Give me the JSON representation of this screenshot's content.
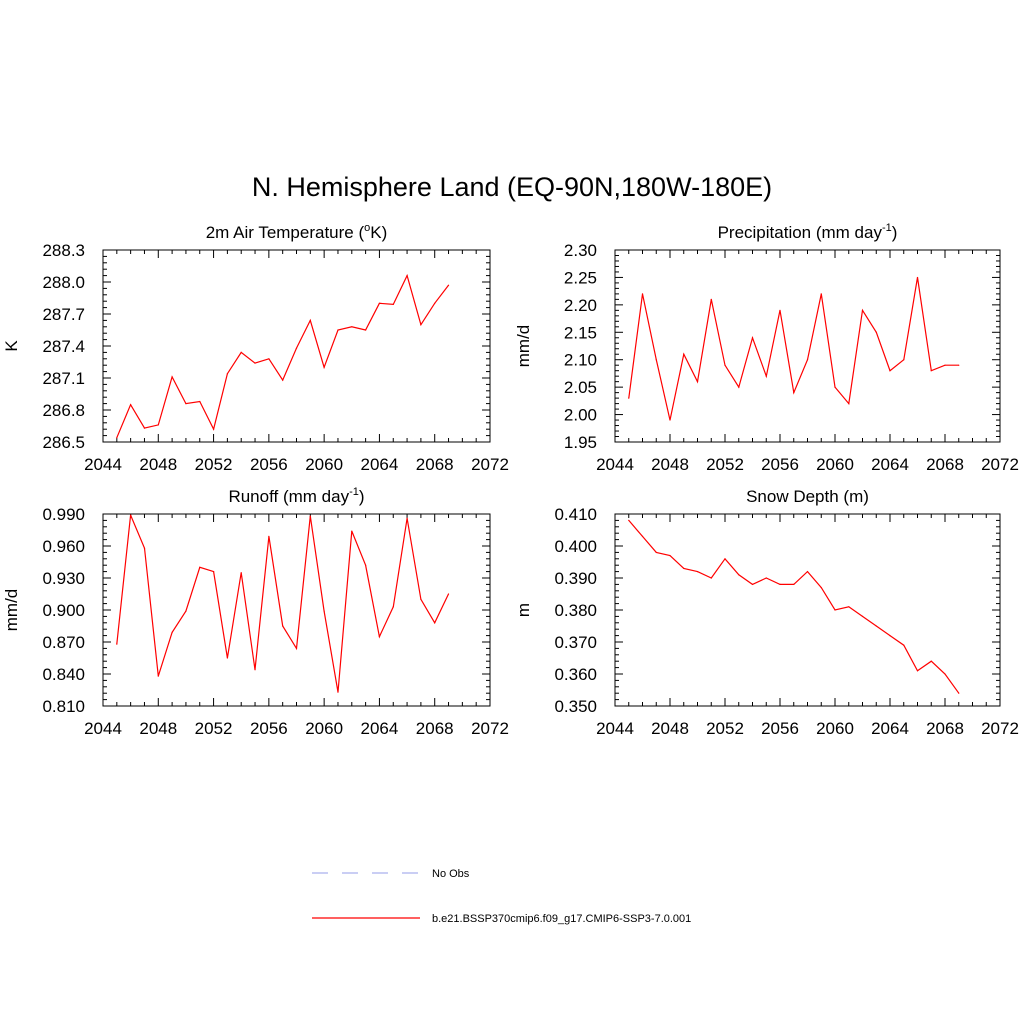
{
  "figure": {
    "title": "N. Hemisphere Land (EQ-90N,180W-180E)"
  },
  "legend": {
    "items": [
      {
        "label": "No Obs",
        "color": "#aab0ee",
        "dashed": true
      },
      {
        "label": "b.e21.BSSP370cmip6.f09_g17.CMIP6-SSP3-7.0.001",
        "color": "#ff0000",
        "dashed": false
      }
    ]
  },
  "chart_data": [
    {
      "type": "line",
      "title": "2m Air Temperature (",
      "title_sup": "o",
      "title_after": "K)",
      "ylabel": "K",
      "xlim": [
        2044,
        2072
      ],
      "ylim": [
        286.5,
        288.3
      ],
      "xticks": [
        "2044",
        "2048",
        "2052",
        "2056",
        "2060",
        "2064",
        "2068",
        "2072"
      ],
      "yticks": [
        "286.5",
        "286.8",
        "287.1",
        "287.4",
        "287.7",
        "288.0",
        "288.3"
      ],
      "color": "#ff0000",
      "x": [
        2045,
        2046,
        2047,
        2048,
        2049,
        2050,
        2051,
        2052,
        2053,
        2054,
        2055,
        2056,
        2057,
        2058,
        2059,
        2060,
        2061,
        2062,
        2063,
        2064,
        2065,
        2066,
        2067,
        2068,
        2069
      ],
      "y": [
        286.54,
        286.85,
        286.63,
        286.66,
        287.11,
        286.86,
        286.88,
        286.62,
        287.14,
        287.34,
        287.24,
        287.28,
        287.08,
        287.38,
        287.64,
        287.2,
        287.55,
        287.58,
        287.55,
        287.8,
        287.79,
        288.06,
        287.6,
        287.8,
        287.97
      ]
    },
    {
      "type": "line",
      "title": "Precipitation (mm day",
      "title_sup": "-1",
      "title_after": ")",
      "ylabel": "mm/d",
      "xlim": [
        2044,
        2072
      ],
      "ylim": [
        1.95,
        2.3
      ],
      "xticks": [
        "2044",
        "2048",
        "2052",
        "2056",
        "2060",
        "2064",
        "2068",
        "2072"
      ],
      "yticks": [
        "1.95",
        "2.00",
        "2.05",
        "2.10",
        "2.15",
        "2.20",
        "2.25",
        "2.30"
      ],
      "color": "#ff0000",
      "x": [
        2045,
        2046,
        2047,
        2048,
        2049,
        2050,
        2051,
        2052,
        2053,
        2054,
        2055,
        2056,
        2057,
        2058,
        2059,
        2060,
        2061,
        2062,
        2063,
        2064,
        2065,
        2066,
        2067,
        2068,
        2069
      ],
      "y": [
        2.03,
        2.22,
        2.1,
        1.99,
        2.11,
        2.06,
        2.21,
        2.09,
        2.05,
        2.14,
        2.07,
        2.19,
        2.04,
        2.1,
        2.22,
        2.05,
        2.02,
        2.19,
        2.15,
        2.08,
        2.1,
        2.25,
        2.08,
        2.09,
        2.09
      ]
    },
    {
      "type": "line",
      "title": "Runoff (mm day",
      "title_sup": "-1",
      "title_after": ")",
      "ylabel": "mm/d",
      "xlim": [
        2044,
        2072
      ],
      "ylim": [
        0.81,
        0.99
      ],
      "xticks": [
        "2044",
        "2048",
        "2052",
        "2056",
        "2060",
        "2064",
        "2068",
        "2072"
      ],
      "yticks": [
        "0.810",
        "0.840",
        "0.870",
        "0.900",
        "0.930",
        "0.960",
        "0.990"
      ],
      "color": "#ff0000",
      "x": [
        2045,
        2046,
        2047,
        2048,
        2049,
        2050,
        2051,
        2052,
        2053,
        2054,
        2055,
        2056,
        2057,
        2058,
        2059,
        2060,
        2061,
        2062,
        2063,
        2064,
        2065,
        2066,
        2067,
        2068,
        2069
      ],
      "y": [
        0.868,
        0.989,
        0.958,
        0.838,
        0.879,
        0.899,
        0.94,
        0.936,
        0.855,
        0.935,
        0.844,
        0.969,
        0.885,
        0.864,
        0.988,
        0.899,
        0.823,
        0.974,
        0.942,
        0.875,
        0.903,
        0.986,
        0.91,
        0.888,
        0.915
      ]
    },
    {
      "type": "line",
      "title": "Snow Depth (m)",
      "title_sup": "",
      "title_after": "",
      "ylabel": "m",
      "xlim": [
        2044,
        2072
      ],
      "ylim": [
        0.35,
        0.41
      ],
      "xticks": [
        "2044",
        "2048",
        "2052",
        "2056",
        "2060",
        "2064",
        "2068",
        "2072"
      ],
      "yticks": [
        "0.350",
        "0.360",
        "0.370",
        "0.380",
        "0.390",
        "0.400",
        "0.410"
      ],
      "color": "#ff0000",
      "x": [
        2045,
        2046,
        2047,
        2048,
        2049,
        2050,
        2051,
        2052,
        2053,
        2054,
        2055,
        2056,
        2057,
        2058,
        2059,
        2060,
        2061,
        2062,
        2063,
        2064,
        2065,
        2066,
        2067,
        2068,
        2069
      ],
      "y": [
        0.408,
        0.403,
        0.398,
        0.397,
        0.393,
        0.392,
        0.39,
        0.396,
        0.391,
        0.388,
        0.39,
        0.388,
        0.388,
        0.392,
        0.387,
        0.38,
        0.381,
        0.378,
        0.375,
        0.372,
        0.369,
        0.361,
        0.364,
        0.36,
        0.354
      ]
    }
  ]
}
